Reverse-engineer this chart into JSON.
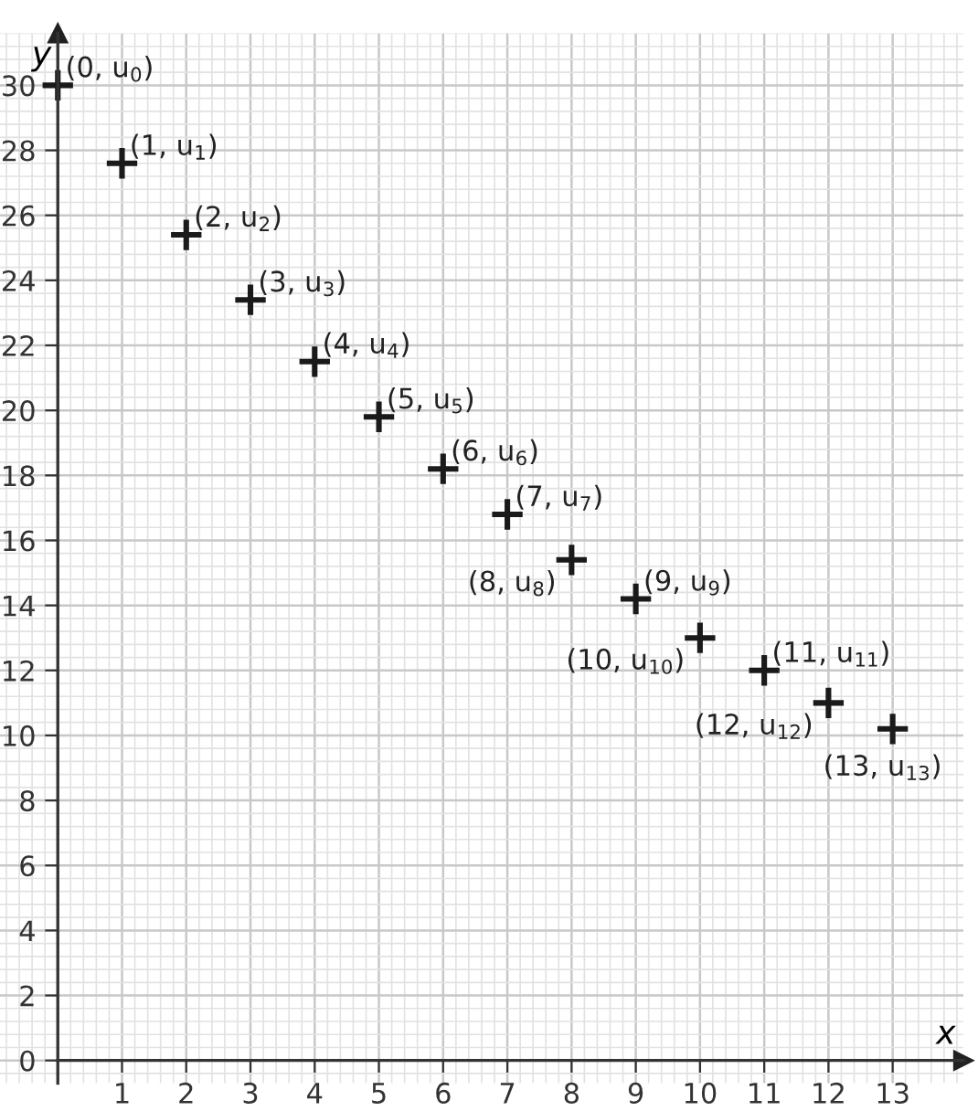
{
  "chart_data": {
    "type": "scatter",
    "xlabel": "x",
    "ylabel": "y",
    "x": [
      0,
      1,
      2,
      3,
      4,
      5,
      6,
      7,
      8,
      9,
      10,
      11,
      12,
      13
    ],
    "values": [
      30,
      27.6,
      25.4,
      23.4,
      21.5,
      19.8,
      18.2,
      16.8,
      15.4,
      14.2,
      13.0,
      12.0,
      11.0,
      10.2
    ],
    "color": "#1a1a1a",
    "marker": "cross",
    "xlim": [
      -0.9,
      14.1
    ],
    "ylim": [
      -0.7,
      31.6
    ],
    "xticks": [
      1,
      2,
      3,
      4,
      5,
      6,
      7,
      8,
      9,
      10,
      11,
      12,
      13
    ],
    "yticks": [
      0,
      2,
      4,
      6,
      8,
      10,
      12,
      14,
      16,
      18,
      20,
      22,
      24,
      26,
      28,
      30
    ],
    "grid": true,
    "annotations": [
      {
        "text": "(0, u$_{0}$)",
        "x": 0,
        "y": 30
      },
      {
        "text": "(1, u$_{1}$)",
        "x": 1,
        "y": 27.6
      },
      {
        "text": "(2, u$_{2}$)",
        "x": 2,
        "y": 25.4
      },
      {
        "text": "(3, u$_{3}$)",
        "x": 3,
        "y": 23.4
      },
      {
        "text": "(4, u$_{4}$)",
        "x": 4,
        "y": 21.5
      },
      {
        "text": "(5, u$_{5}$)",
        "x": 5,
        "y": 19.8
      },
      {
        "text": "(6, u$_{6}$)",
        "x": 6,
        "y": 18.2
      },
      {
        "text": "(7, u$_{7}$)",
        "x": 7,
        "y": 16.8
      },
      {
        "text": "(8, u$_{8}$)",
        "x": 8,
        "y": 15.4
      },
      {
        "text": "(9, u$_{9}$)",
        "x": 9,
        "y": 14.2
      },
      {
        "text": "(10, u$_{10}$)",
        "x": 10,
        "y": 13.0
      },
      {
        "text": "(11, u$_{11}$)",
        "x": 11,
        "y": 12.0
      },
      {
        "text": "(12, u$_{12}$)",
        "x": 12,
        "y": 11.0
      },
      {
        "text": "(13, u$_{13}$)",
        "x": 13,
        "y": 10.2
      }
    ]
  }
}
